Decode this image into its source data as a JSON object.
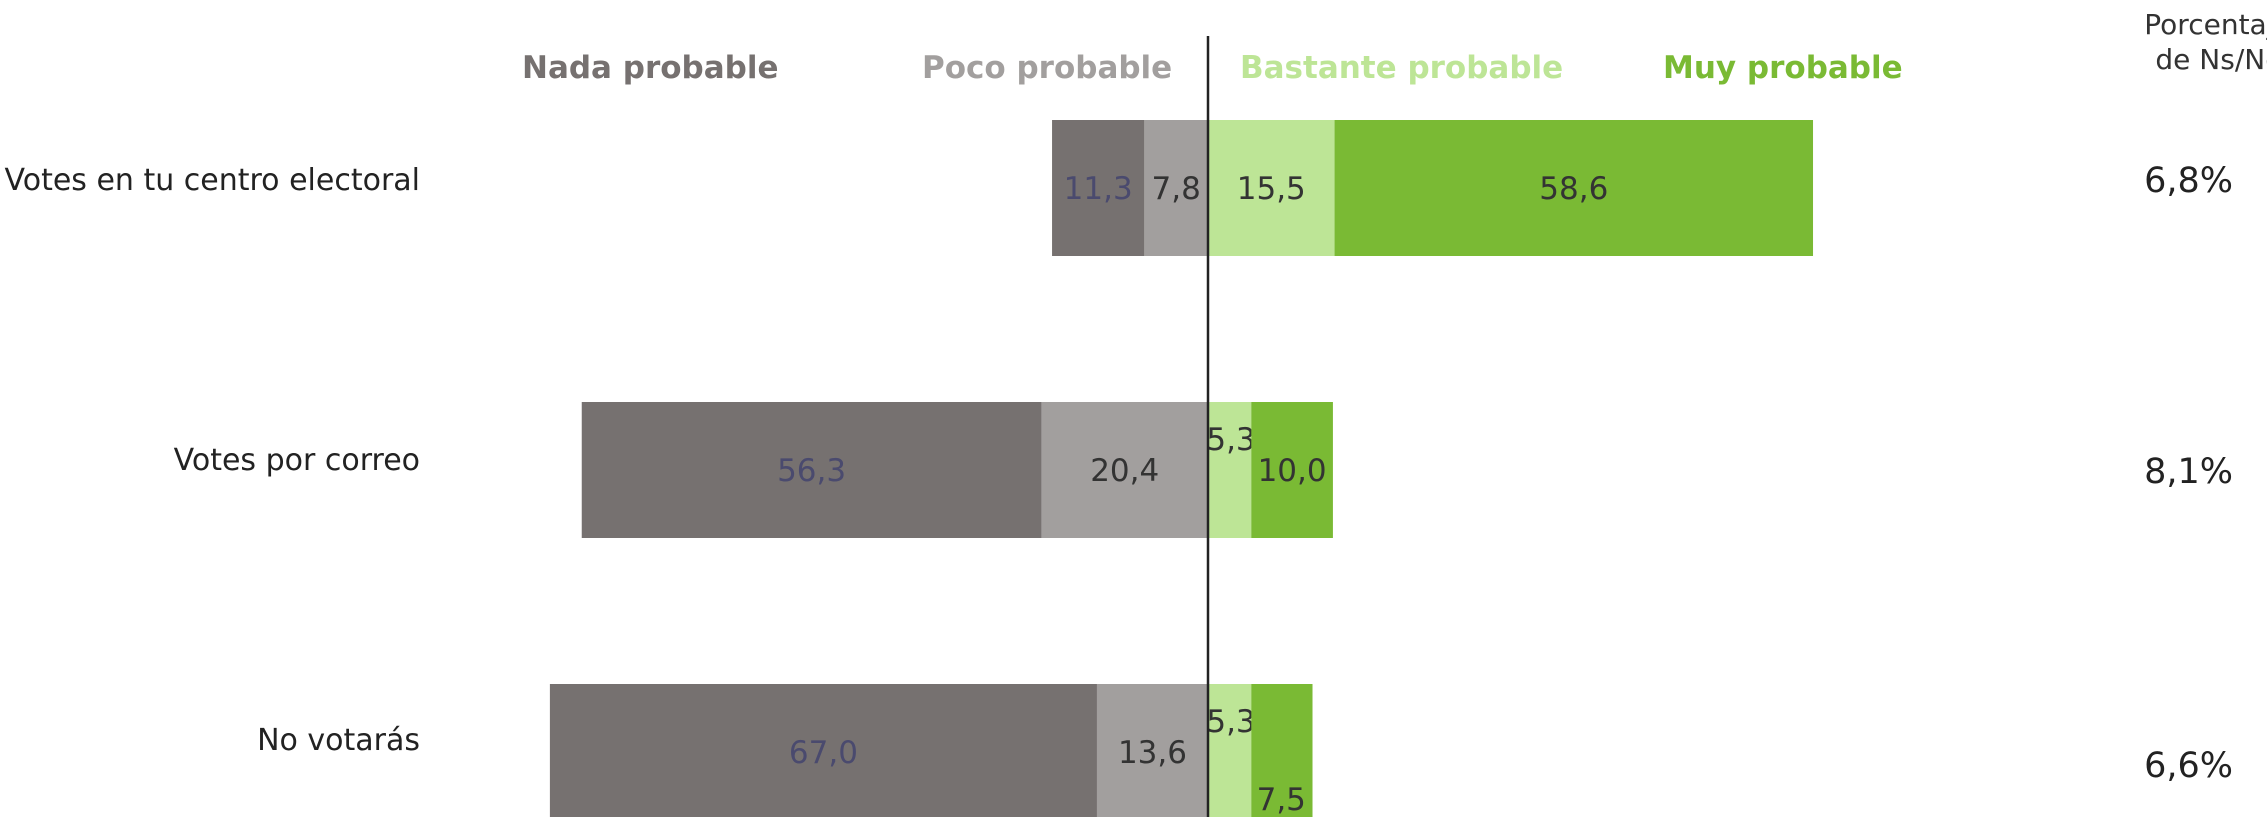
{
  "chart_data": {
    "type": "bar",
    "orientation": "horizontal-diverging",
    "categories": [
      "Votes en tu centro electoral",
      "Votes por correo",
      "No votarás"
    ],
    "series": [
      {
        "name": "Nada probable",
        "color": "#767170",
        "label_color": "#4a4a6e",
        "side": "negative",
        "values": [
          11.3,
          56.3,
          67.0
        ],
        "labels": [
          "11,3",
          "56,3",
          "67,0"
        ]
      },
      {
        "name": "Poco probable",
        "color": "#a29f9e",
        "label_color": "#333333",
        "side": "negative",
        "values": [
          7.8,
          20.4,
          13.6
        ],
        "labels": [
          "7,8",
          "20,4",
          "13,6"
        ]
      },
      {
        "name": "Bastante probable",
        "color": "#bde596",
        "label_color": "#333333",
        "side": "positive",
        "values": [
          15.5,
          5.3,
          5.3
        ],
        "labels": [
          "15,5",
          "5,3",
          "5,3"
        ]
      },
      {
        "name": "Muy probable",
        "color": "#7aba34",
        "label_color": "#333333",
        "side": "positive",
        "values": [
          58.6,
          10.0,
          7.5
        ],
        "labels": [
          "58,6",
          "10,0",
          "7,5"
        ]
      }
    ],
    "ns_nc": {
      "header_line1": "Porcentaje",
      "header_line2": "de Ns/Nc",
      "values": [
        "6,8%",
        "8,1%",
        "6,6%"
      ]
    },
    "legend_colors": [
      "#767170",
      "#a29f9e",
      "#bde596",
      "#7aba34"
    ],
    "legend_placement": "top",
    "grid": false
  }
}
